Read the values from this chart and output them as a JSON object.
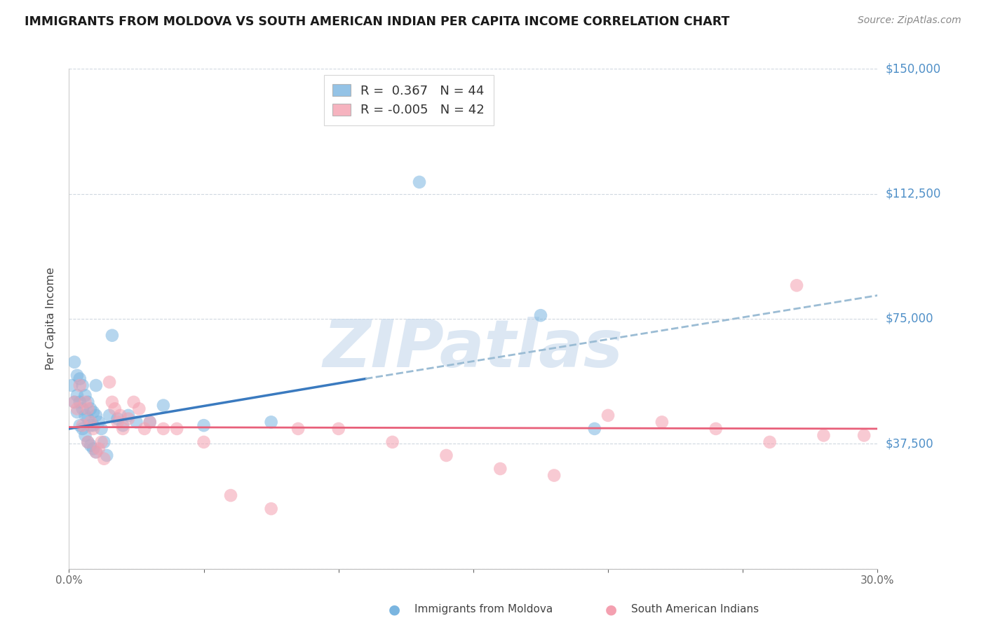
{
  "title": "IMMIGRANTS FROM MOLDOVA VS SOUTH AMERICAN INDIAN PER CAPITA INCOME CORRELATION CHART",
  "source": "Source: ZipAtlas.com",
  "ylabel": "Per Capita Income",
  "x_min": 0.0,
  "x_max": 0.3,
  "y_min": 0,
  "y_max": 150000,
  "yticks": [
    0,
    37500,
    75000,
    112500,
    150000
  ],
  "ytick_labels": [
    "",
    "$37,500",
    "$75,000",
    "$112,500",
    "$150,000"
  ],
  "xticks": [
    0.0,
    0.05,
    0.1,
    0.15,
    0.2,
    0.25,
    0.3
  ],
  "xtick_labels": [
    "0.0%",
    "",
    "",
    "",
    "",
    "",
    "30.0%"
  ],
  "legend_bottom_labels": [
    "Immigrants from Moldova",
    "South American Indians"
  ],
  "R1": 0.367,
  "N1": 44,
  "R2": -0.005,
  "N2": 42,
  "color_blue": "#7ab5e0",
  "color_pink": "#f4a0b0",
  "color_blue_line": "#3a7abf",
  "color_pink_line": "#e8607a",
  "color_dashed": "#9bbcd4",
  "watermark_text": "ZIPatlas",
  "blue_scatter_x": [
    0.001,
    0.002,
    0.002,
    0.003,
    0.003,
    0.003,
    0.004,
    0.004,
    0.004,
    0.005,
    0.005,
    0.005,
    0.006,
    0.006,
    0.006,
    0.007,
    0.007,
    0.007,
    0.008,
    0.008,
    0.008,
    0.009,
    0.009,
    0.009,
    0.01,
    0.01,
    0.01,
    0.011,
    0.012,
    0.013,
    0.014,
    0.015,
    0.016,
    0.018,
    0.02,
    0.022,
    0.025,
    0.03,
    0.035,
    0.05,
    0.075,
    0.13,
    0.175,
    0.195
  ],
  "blue_scatter_y": [
    55000,
    62000,
    50000,
    58000,
    52000,
    47000,
    57000,
    50000,
    43000,
    55000,
    48000,
    42000,
    52000,
    46000,
    40000,
    50000,
    45000,
    38000,
    48000,
    43000,
    37000,
    47000,
    43000,
    36000,
    55000,
    46000,
    35000,
    44000,
    42000,
    38000,
    34000,
    46000,
    70000,
    45000,
    43000,
    46000,
    44000,
    44000,
    49000,
    43000,
    44000,
    116000,
    76000,
    42000
  ],
  "pink_scatter_x": [
    0.002,
    0.003,
    0.004,
    0.005,
    0.006,
    0.007,
    0.007,
    0.008,
    0.009,
    0.01,
    0.011,
    0.012,
    0.013,
    0.015,
    0.016,
    0.017,
    0.018,
    0.019,
    0.02,
    0.022,
    0.024,
    0.026,
    0.028,
    0.03,
    0.035,
    0.04,
    0.05,
    0.06,
    0.075,
    0.085,
    0.1,
    0.12,
    0.14,
    0.16,
    0.18,
    0.2,
    0.22,
    0.24,
    0.26,
    0.27,
    0.28,
    0.295
  ],
  "pink_scatter_y": [
    50000,
    48000,
    55000,
    43000,
    50000,
    48000,
    38000,
    44000,
    42000,
    35000,
    36000,
    38000,
    33000,
    56000,
    50000,
    48000,
    44000,
    46000,
    42000,
    45000,
    50000,
    48000,
    42000,
    44000,
    42000,
    42000,
    38000,
    22000,
    18000,
    42000,
    42000,
    38000,
    34000,
    30000,
    28000,
    46000,
    44000,
    42000,
    38000,
    85000,
    40000,
    40000
  ],
  "blue_line_x0": 0.0,
  "blue_line_y0": 42000,
  "blue_line_x1": 0.11,
  "blue_line_y1": 57000,
  "dashed_line_x0": 0.11,
  "dashed_line_y0": 57000,
  "dashed_line_x1": 0.3,
  "dashed_line_y1": 82000,
  "pink_line_x0": 0.0,
  "pink_line_y0": 42500,
  "pink_line_x1": 0.3,
  "pink_line_y1": 42000
}
